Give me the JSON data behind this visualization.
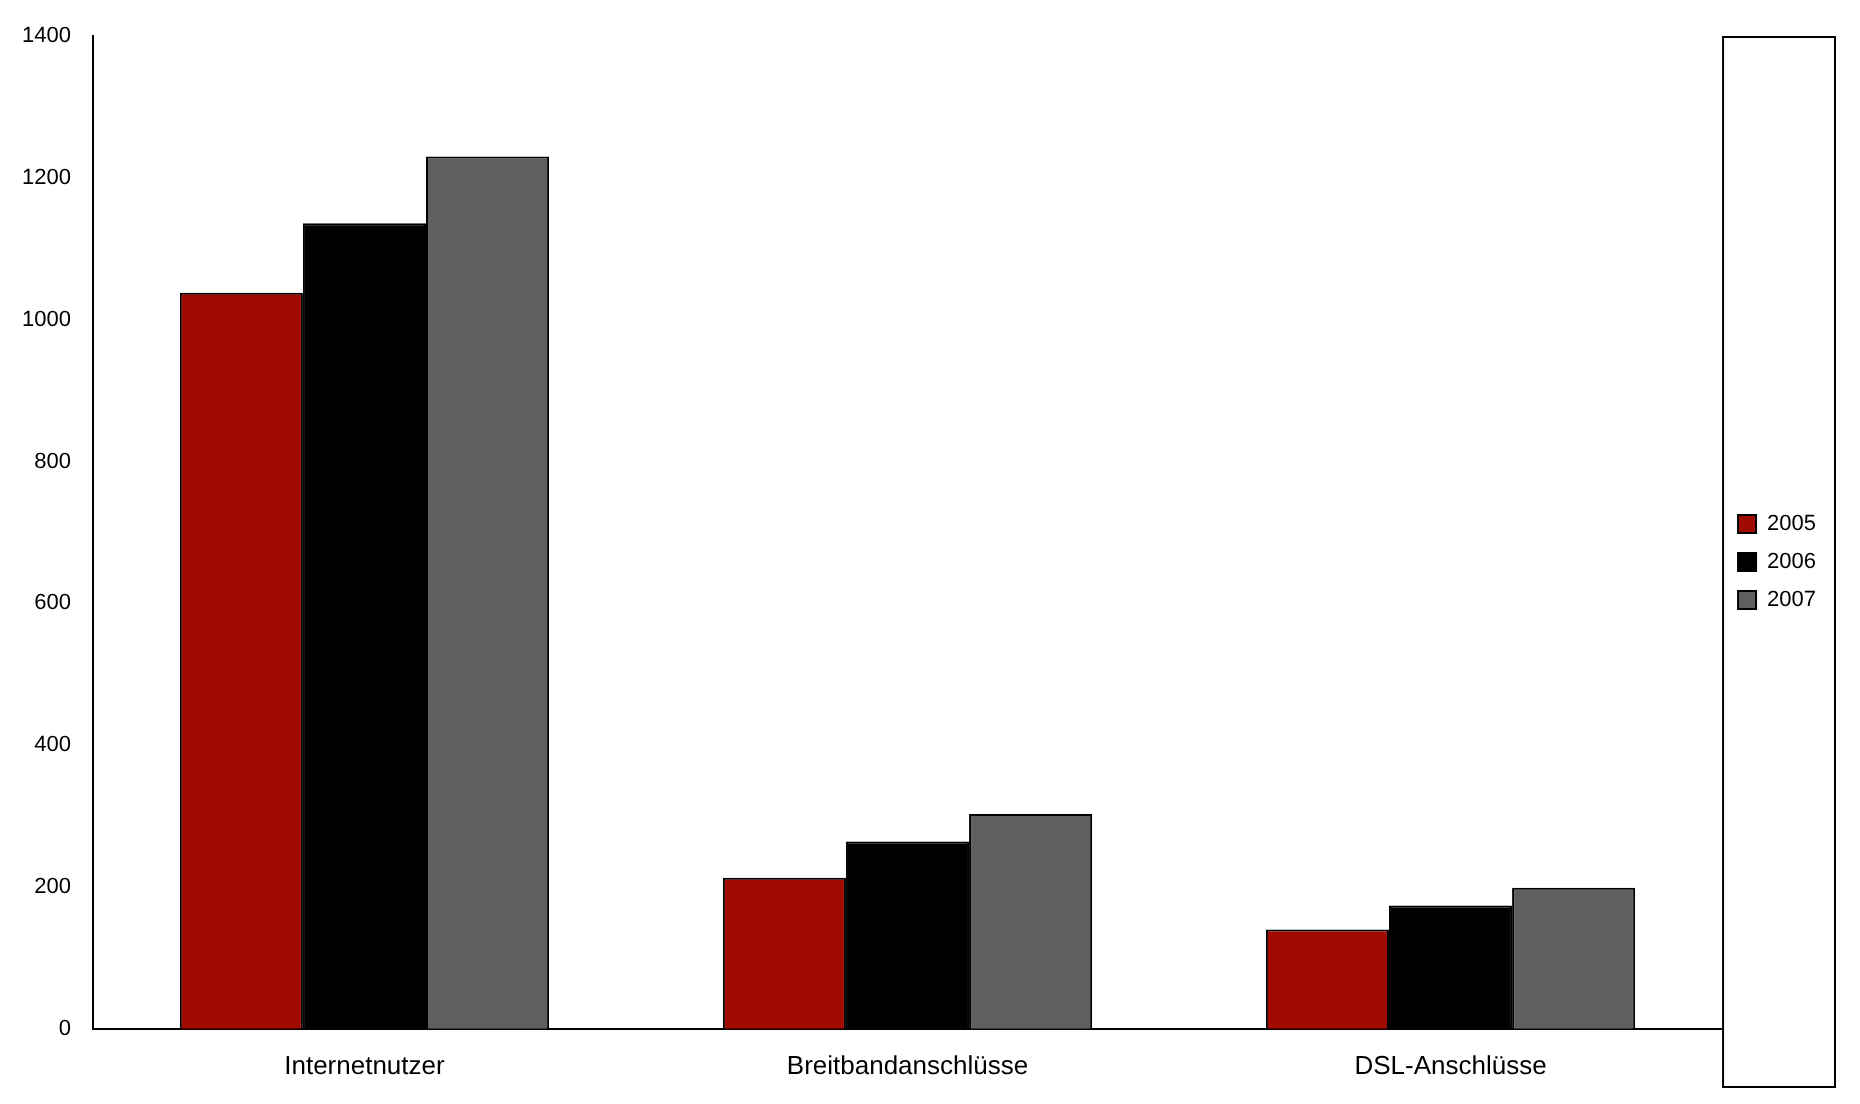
{
  "chart_data": {
    "type": "bar",
    "categories": [
      "Internetnutzer",
      "Breitbandanschlüsse",
      "DSL-Anschlüsse"
    ],
    "series": [
      {
        "name": "2005",
        "color": "#a00a00",
        "values": [
          1038,
          213,
          140
        ]
      },
      {
        "name": "2006",
        "color": "#000000",
        "values": [
          1136,
          264,
          174
        ]
      },
      {
        "name": "2007",
        "color": "#5f5f5f",
        "values": [
          1230,
          303,
          199
        ]
      }
    ],
    "ylim": [
      0,
      1400
    ],
    "yticks": [
      0,
      200,
      400,
      600,
      800,
      1000,
      1200,
      1400
    ],
    "grid": false,
    "legend": "right"
  }
}
